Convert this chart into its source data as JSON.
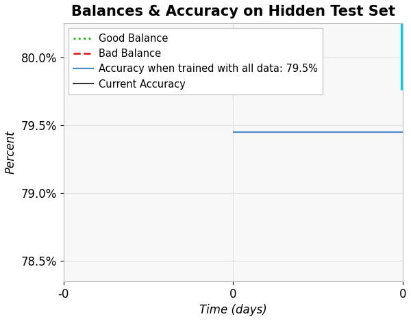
{
  "title": "Balances & Accuracy on Hidden Test Set",
  "xlabel": "Time (days)",
  "ylabel": "Percent",
  "ylim": [
    78.35,
    80.25
  ],
  "xlim": [
    -100000,
    100000
  ],
  "yticks": [
    78.5,
    79.0,
    79.5,
    80.0
  ],
  "ytick_labels": [
    "78.5%",
    "79.0%",
    "79.5%",
    "80.0%"
  ],
  "xticks": [
    -100000,
    0,
    100000
  ],
  "xtick_labels": [
    "-0",
    "0",
    "0"
  ],
  "accuracy_all_data": 79.45,
  "accuracy_all_data_label": "Accuracy when trained with all data: 79.5%",
  "accuracy_all_data_color": "#4488CC",
  "accuracy_all_data_x_start": 0,
  "current_accuracy_label": "Current Accuracy",
  "current_accuracy_color": "#333333",
  "good_balance_label": "Good Balance",
  "good_balance_color": "#00BB00",
  "bad_balance_label": "Bad Balance",
  "bad_balance_color": "#DD2222",
  "right_line_color": "#00CCEE",
  "background_color": "#FFFFFF",
  "plot_bg_color": "#F8F8F8",
  "grid_color": "#E0E0E0",
  "title_fontsize": 15,
  "axis_label_fontsize": 12,
  "tick_fontsize": 12,
  "legend_fontsize": 10.5
}
